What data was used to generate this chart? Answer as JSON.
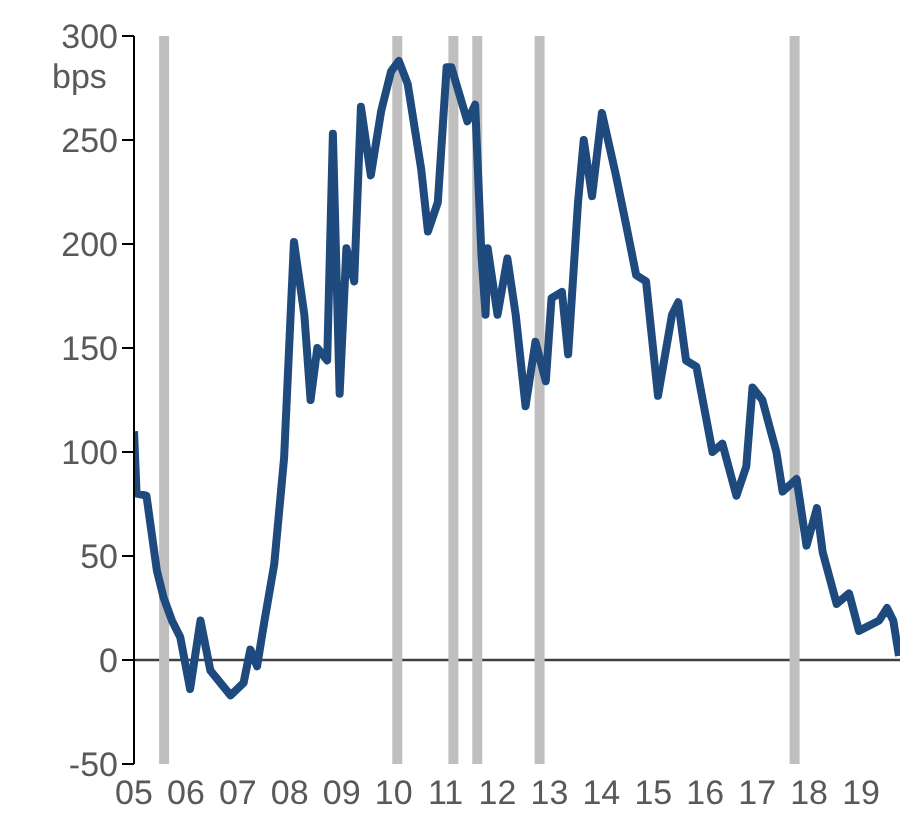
{
  "chart_data": {
    "type": "line",
    "ylabel": "bps",
    "x": [
      2005.0,
      2005.05,
      2005.24,
      2005.44,
      2005.57,
      2005.73,
      2005.89,
      2006.08,
      2006.28,
      2006.47,
      2006.86,
      2007.11,
      2007.24,
      2007.37,
      2007.5,
      2007.7,
      2007.89,
      2008.08,
      2008.28,
      2008.4,
      2008.53,
      2008.72,
      2008.83,
      2008.96,
      2009.09,
      2009.24,
      2009.37,
      2009.56,
      2009.76,
      2009.95,
      2010.1,
      2010.27,
      2010.53,
      2010.66,
      2010.85,
      2011.02,
      2011.11,
      2011.42,
      2011.57,
      2011.69,
      2011.77,
      2011.81,
      2012.0,
      2012.19,
      2012.35,
      2012.54,
      2012.73,
      2012.93,
      2013.04,
      2013.24,
      2013.36,
      2013.55,
      2013.66,
      2013.82,
      2014.01,
      2014.28,
      2014.47,
      2014.67,
      2014.86,
      2015.09,
      2015.36,
      2015.48,
      2015.63,
      2015.83,
      2016.14,
      2016.33,
      2016.6,
      2016.79,
      2016.91,
      2017.1,
      2017.37,
      2017.49,
      2017.76,
      2017.95,
      2018.15,
      2018.26,
      2018.53,
      2018.77,
      2018.96,
      2019.35,
      2019.5,
      2019.62,
      2019.73
    ],
    "series": [
      {
        "color": "#1f4a7e",
        "values": [
          110,
          80,
          79,
          43,
          30,
          19,
          11,
          -14,
          19,
          -5,
          -17,
          -11,
          5,
          -3,
          17,
          46,
          97,
          201,
          166,
          125,
          150,
          144,
          253,
          128,
          198,
          182,
          266,
          233,
          264,
          283,
          288,
          277,
          236,
          206,
          220,
          285,
          285,
          259,
          267,
          195,
          166,
          198,
          166,
          193,
          166,
          122,
          153,
          134,
          174,
          177,
          147,
          220,
          250,
          223,
          263,
          233,
          210,
          185,
          182,
          127,
          166,
          172,
          144,
          141,
          100,
          104,
          79,
          93,
          131,
          125,
          100,
          81,
          87,
          55,
          73,
          52,
          27,
          32,
          14,
          19,
          25,
          19,
          2
        ]
      }
    ],
    "xlim": [
      2005,
      2019.75
    ],
    "xticks": [
      {
        "value": 2005,
        "label": "05"
      },
      {
        "value": 2006,
        "label": "06"
      },
      {
        "value": 2007,
        "label": "07"
      },
      {
        "value": 2008,
        "label": "08"
      },
      {
        "value": 2009,
        "label": "09"
      },
      {
        "value": 2010,
        "label": "10"
      },
      {
        "value": 2011,
        "label": "11"
      },
      {
        "value": 2012,
        "label": "12"
      },
      {
        "value": 2013,
        "label": "13"
      },
      {
        "value": 2014,
        "label": "14"
      },
      {
        "value": 2015,
        "label": "15"
      },
      {
        "value": 2016,
        "label": "16"
      },
      {
        "value": 2017,
        "label": "17"
      },
      {
        "value": 2018,
        "label": "18"
      },
      {
        "value": 2019,
        "label": "19"
      }
    ],
    "ylim": [
      -50,
      300
    ],
    "yticks": [
      -50,
      0,
      50,
      100,
      150,
      200,
      250,
      300
    ],
    "ref_lines": [
      {
        "axis": "y",
        "value": 0,
        "color": "#404040"
      },
      {
        "axis": "x",
        "value": 2005.58,
        "color": "#bfbfbf"
      },
      {
        "axis": "x",
        "value": 2010.07,
        "color": "#bfbfbf"
      },
      {
        "axis": "x",
        "value": 2011.15,
        "color": "#bfbfbf"
      },
      {
        "axis": "x",
        "value": 2011.61,
        "color": "#bfbfbf"
      },
      {
        "axis": "x",
        "value": 2012.81,
        "color": "#bfbfbf"
      },
      {
        "axis": "x",
        "value": 2017.72,
        "color": "#bfbfbf"
      }
    ],
    "grid": false,
    "legend": false,
    "marker": "none",
    "line_style": "solid"
  }
}
